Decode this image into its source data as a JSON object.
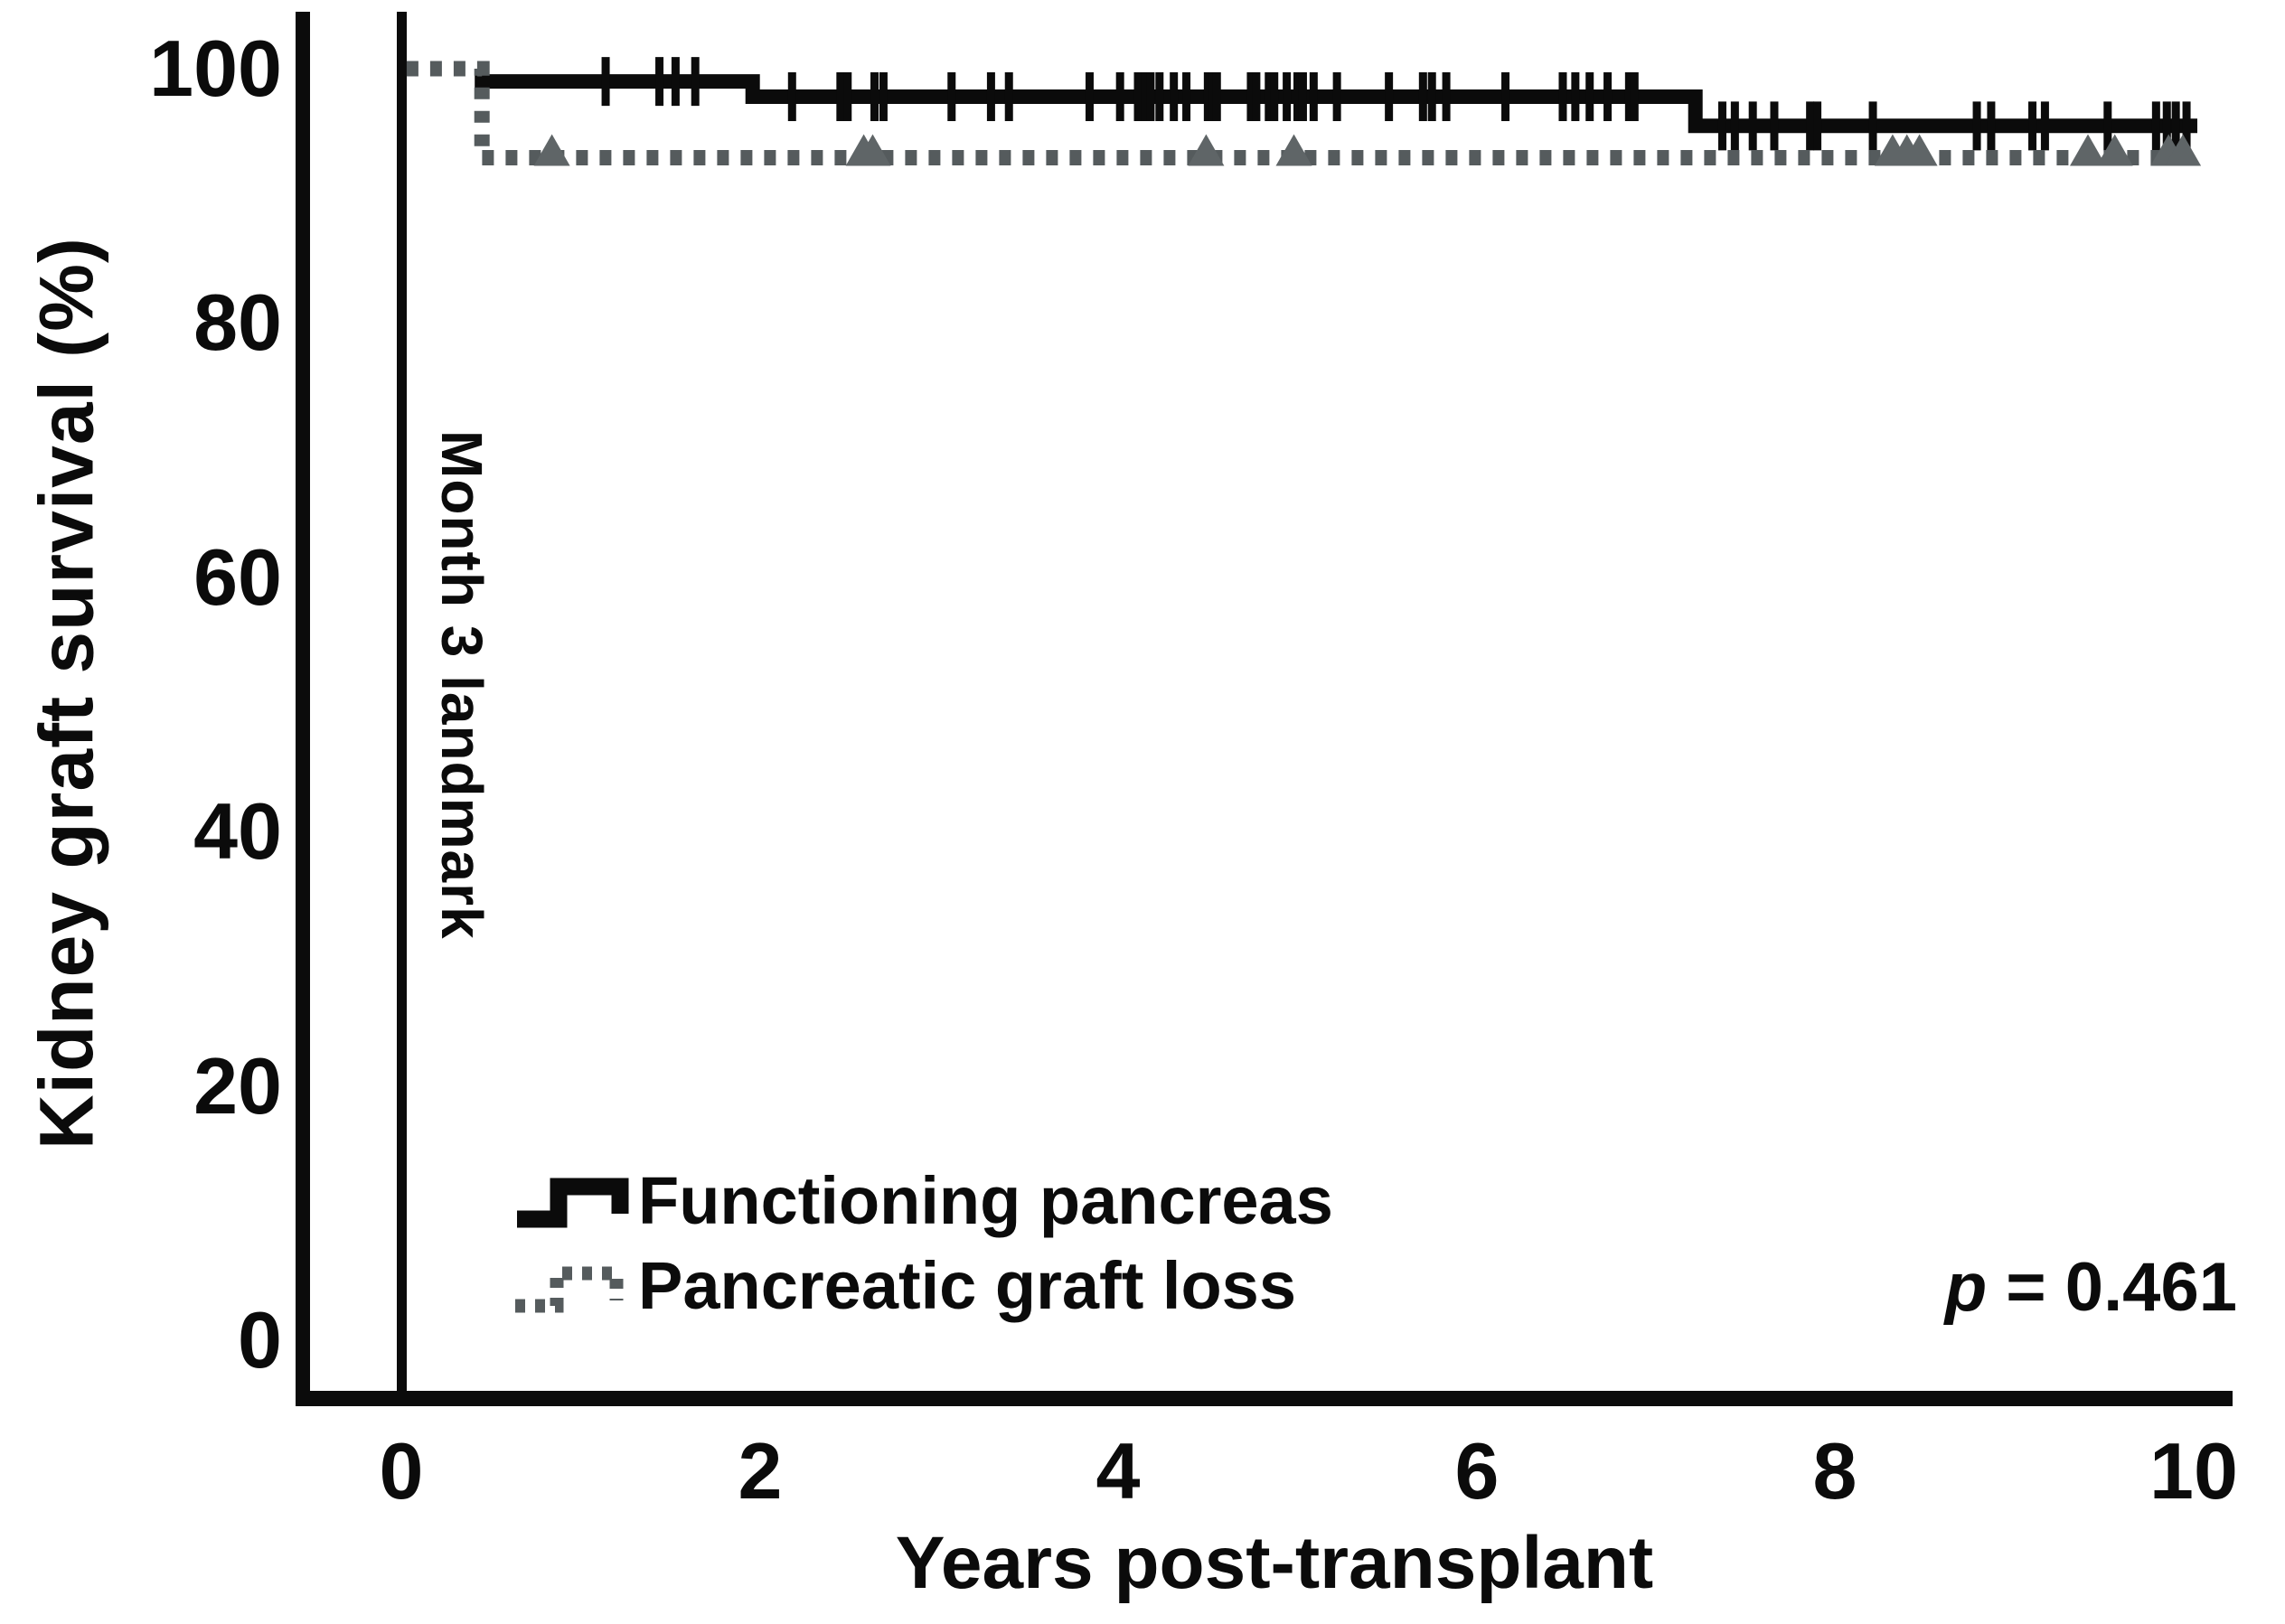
{
  "figure": {
    "y_axis_label": "Kidney graft survival (%)",
    "x_axis_label": "Years post-transplant",
    "landmark_label": "Month 3 landmark",
    "p_value_italic": "p",
    "p_value_rest": " = 0.461"
  },
  "legend": {
    "items": [
      {
        "label": "Functioning pancreas",
        "style": "solid-step",
        "color": "#0b0b0b"
      },
      {
        "label": "Pancreatic graft loss",
        "style": "dotted-step",
        "color": "#555b5d"
      }
    ]
  },
  "chart_data": {
    "type": "line",
    "subtype": "kaplan-meier-step",
    "title": "",
    "xlabel": "Years post-transplant",
    "ylabel": "Kidney graft survival (%)",
    "xlim": [
      0,
      10
    ],
    "ylim": [
      0,
      100
    ],
    "xticks": [
      0,
      2,
      4,
      6,
      8,
      10
    ],
    "yticks": [
      0,
      20,
      40,
      60,
      80,
      100
    ],
    "xtick_labels": [
      "0",
      "2",
      "4",
      "6",
      "8",
      "10"
    ],
    "ytick_labels": [
      "0",
      "20",
      "40",
      "60",
      "80",
      "100"
    ],
    "grid": false,
    "legend_position": "lower-left-inside",
    "annotations": {
      "landmark_x": 0,
      "landmark_text": "Month 3 landmark",
      "p_text": "p = 0.461"
    },
    "series": [
      {
        "name": "Functioning pancreas",
        "color": "#0b0b0b",
        "line": "solid",
        "censor_marker": "tick",
        "points": [
          [
            0.45,
            100
          ],
          [
            0.45,
            99
          ],
          [
            1.96,
            99
          ],
          [
            1.96,
            97.8
          ],
          [
            7.22,
            97.8
          ],
          [
            7.22,
            95.5
          ],
          [
            10.02,
            95.5
          ]
        ],
        "censor_marks": [
          {
            "y": 99,
            "x": [
              1.14,
              1.44,
              1.53,
              1.64
            ]
          },
          {
            "y": 97.8,
            "x": [
              2.18,
              2.45,
              2.49,
              2.64,
              2.69,
              3.07,
              3.29,
              3.39,
              3.84,
              4.01,
              4.11,
              4.15,
              4.18,
              4.23,
              4.31,
              4.38,
              4.5,
              4.53,
              4.55,
              4.74,
              4.77,
              4.84,
              4.87,
              4.94,
              5.0,
              5.03,
              5.09,
              5.22,
              5.51,
              5.7,
              5.75,
              5.83,
              6.16,
              6.48,
              6.55,
              6.63,
              6.73,
              6.85,
              6.88
            ]
          },
          {
            "y": 95.5,
            "x": [
              7.37,
              7.44,
              7.54,
              7.66,
              7.86,
              7.9,
              8.21,
              8.79,
              8.87,
              9.1,
              9.17,
              9.52,
              9.79,
              9.85,
              9.9,
              9.96
            ]
          }
        ]
      },
      {
        "name": "Pancreatic graft loss",
        "color": "#555b5d",
        "line": "dotted",
        "censor_marker": "triangle",
        "points": [
          [
            0.03,
            100
          ],
          [
            0.45,
            100
          ],
          [
            0.45,
            93
          ],
          [
            10.02,
            93
          ]
        ],
        "censor_marks": [
          {
            "y": 93,
            "x": [
              0.84,
              2.58,
              2.63,
              4.49,
              4.98,
              8.32,
              8.4,
              8.47,
              9.41,
              9.56,
              9.86,
              9.94
            ]
          }
        ]
      }
    ]
  }
}
